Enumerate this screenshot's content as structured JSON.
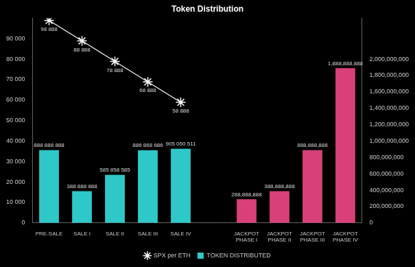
{
  "chart_data": {
    "type": "bar",
    "title": "Token Distribution",
    "categories": [
      "PRE-SALE",
      "SALE I",
      "SALE II",
      "SALE III",
      "SALE IV",
      null,
      "JACKPOT PHASE I",
      "JACKPOT PHASE II",
      "JACKPOT PHASE III",
      "JACKPOT PHASE IV"
    ],
    "series": [
      {
        "name": "TOKEN DISTRIBUTED",
        "type": "bar",
        "axis": "y2",
        "colors": [
          "#2ec8c8",
          "#2ec8c8",
          "#2ec8c8",
          "#2ec8c8",
          "#2ec8c8",
          "#2ec8c8",
          "#d8407a",
          "#d8407a",
          "#d8407a",
          "#d8407a"
        ],
        "values": [
          888888888,
          388888888,
          585858585,
          886868686,
          905050511,
          null,
          288888888,
          388888888,
          888888888,
          1888888888
        ],
        "value_labels": [
          "888 888 888",
          "388 888 888",
          "585 858 585",
          "886 868 686",
          "905 050 511",
          null,
          "288,888,888",
          "388,888,888",
          "888,888,888",
          "1,888,888,888"
        ]
      },
      {
        "name": "SPX per ETH",
        "type": "line",
        "color": "#ffffff",
        "marker": "star",
        "values": [
          98888,
          88888,
          78888,
          68888,
          58888,
          null,
          null,
          null,
          null,
          null
        ],
        "value_labels": [
          "98 888",
          "88 888",
          "78 888",
          "68 888",
          "58 888",
          null,
          null,
          null,
          null,
          null
        ]
      }
    ],
    "ylim": [
      0,
      100000
    ],
    "yticks": [
      0,
      {
        "value": 10000,
        "label": "10 000"
      },
      {
        "value": 20000,
        "label": "20 000"
      },
      {
        "value": 30000,
        "label": "30 000"
      },
      {
        "value": 40000,
        "label": "40 000"
      },
      {
        "value": 50000,
        "label": "50 000"
      },
      {
        "value": 60000,
        "label": "60 000"
      },
      {
        "value": 70000,
        "label": "70 000"
      },
      {
        "value": 80000,
        "label": "80 000"
      },
      {
        "value": 90000,
        "label": "90 000"
      }
    ],
    "y2lim": [
      0,
      2500000000
    ],
    "y2ticks": [
      0,
      {
        "value": 200000000,
        "label": "200,000,000"
      },
      {
        "value": 400000000,
        "label": "400,000,000"
      },
      {
        "value": 600000000,
        "label": "600,000,000"
      },
      {
        "value": 800000000,
        "label": "800,000,000"
      },
      {
        "value": 1000000000,
        "label": "1,000,000,000"
      },
      {
        "value": 1200000000,
        "label": "1,200,000,000"
      },
      {
        "value": 1400000000,
        "label": "1,400,000,000"
      },
      {
        "value": 1600000000,
        "label": "1,600,000,000"
      },
      {
        "value": 1800000000,
        "label": "1,800,000,000"
      },
      {
        "value": 2000000000,
        "label": "2,000,000,000"
      }
    ],
    "grid": false,
    "legend": "bottom",
    "data_labels": true
  }
}
